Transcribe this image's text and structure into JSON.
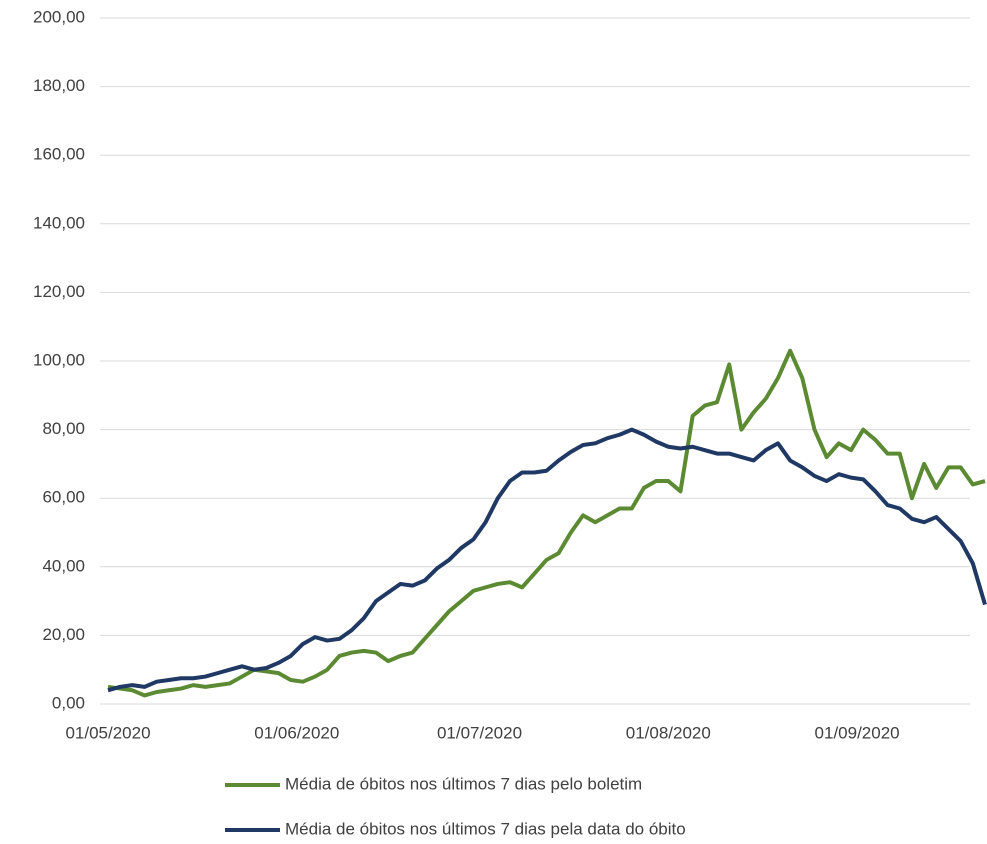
{
  "chart_data": {
    "type": "line",
    "x": [
      "01/05/2020",
      "03/05/2020",
      "05/05/2020",
      "07/05/2020",
      "09/05/2020",
      "11/05/2020",
      "13/05/2020",
      "15/05/2020",
      "17/05/2020",
      "19/05/2020",
      "21/05/2020",
      "23/05/2020",
      "25/05/2020",
      "27/05/2020",
      "29/05/2020",
      "31/05/2020",
      "02/06/2020",
      "04/06/2020",
      "06/06/2020",
      "08/06/2020",
      "10/06/2020",
      "12/06/2020",
      "14/06/2020",
      "16/06/2020",
      "18/06/2020",
      "20/06/2020",
      "22/06/2020",
      "24/06/2020",
      "26/06/2020",
      "28/06/2020",
      "30/06/2020",
      "02/07/2020",
      "04/07/2020",
      "06/07/2020",
      "08/07/2020",
      "10/07/2020",
      "12/07/2020",
      "14/07/2020",
      "16/07/2020",
      "18/07/2020",
      "20/07/2020",
      "22/07/2020",
      "24/07/2020",
      "26/07/2020",
      "28/07/2020",
      "30/07/2020",
      "01/08/2020",
      "03/08/2020",
      "05/08/2020",
      "07/08/2020",
      "09/08/2020",
      "11/08/2020",
      "13/08/2020",
      "15/08/2020",
      "17/08/2020",
      "19/08/2020",
      "21/08/2020",
      "23/08/2020",
      "25/08/2020",
      "27/08/2020",
      "29/08/2020",
      "31/08/2020",
      "02/09/2020",
      "04/09/2020",
      "06/09/2020",
      "08/09/2020",
      "10/09/2020",
      "12/09/2020",
      "14/09/2020",
      "16/09/2020",
      "18/09/2020",
      "20/09/2020",
      "22/09/2020"
    ],
    "series": [
      {
        "name": "Média de óbitos nos últimos 7 dias pelo boletim",
        "color": "#5b8a32",
        "values": [
          5,
          4.5,
          4,
          2.5,
          3.5,
          4,
          4.5,
          5.5,
          5,
          5.5,
          6,
          8,
          10,
          9.5,
          9,
          7,
          6.5,
          8,
          10,
          14,
          15,
          15.5,
          15,
          12.5,
          14,
          15,
          19,
          23,
          27,
          30,
          33,
          34,
          35,
          35.5,
          34,
          38,
          42,
          44,
          50,
          55,
          53,
          55,
          57,
          57,
          63,
          65,
          65,
          62,
          84,
          87,
          88,
          99,
          80,
          85,
          89,
          95,
          103,
          95,
          80,
          72,
          76,
          74,
          80,
          77,
          73,
          73,
          60,
          70,
          63,
          69,
          69,
          64,
          65
        ]
      },
      {
        "name": "Média de óbitos nos últimos 7 dias pela data do óbito",
        "color": "#1f3864",
        "values": [
          4,
          5,
          5.5,
          5,
          6.5,
          7,
          7.5,
          7.5,
          8,
          9,
          10,
          11,
          10,
          10.5,
          12,
          14,
          17.5,
          19.5,
          18.5,
          19,
          21.5,
          25,
          30,
          32.5,
          35,
          34.5,
          36,
          39.5,
          42,
          45.5,
          48,
          53,
          60,
          65,
          67.5,
          67.5,
          68,
          71,
          73.5,
          75.5,
          76,
          77.5,
          78.5,
          80,
          78.5,
          76.5,
          75,
          74.5,
          75,
          74,
          73,
          73,
          72,
          71,
          74,
          76,
          71,
          69,
          66.5,
          65,
          67,
          66,
          65.5,
          62,
          58,
          57,
          54,
          53,
          54.5,
          51,
          47.5,
          41,
          29
        ]
      }
    ],
    "xlim": [
      "01/05/2020",
      "22/09/2020"
    ],
    "xticks": [
      "01/05/2020",
      "01/06/2020",
      "01/07/2020",
      "01/08/2020",
      "01/09/2020"
    ],
    "ylim": [
      0,
      200
    ],
    "yticks": [
      {
        "value": 0,
        "label": "0,00"
      },
      {
        "value": 20,
        "label": "20,00"
      },
      {
        "value": 40,
        "label": "40,00"
      },
      {
        "value": 60,
        "label": "60,00"
      },
      {
        "value": 80,
        "label": "80,00"
      },
      {
        "value": 100,
        "label": "100,00"
      },
      {
        "value": 120,
        "label": "120,00"
      },
      {
        "value": 140,
        "label": "140,00"
      },
      {
        "value": 160,
        "label": "160,00"
      },
      {
        "value": 180,
        "label": "180,00"
      },
      {
        "value": 200,
        "label": "200,00"
      }
    ],
    "grid": true,
    "legend": "bottom"
  }
}
